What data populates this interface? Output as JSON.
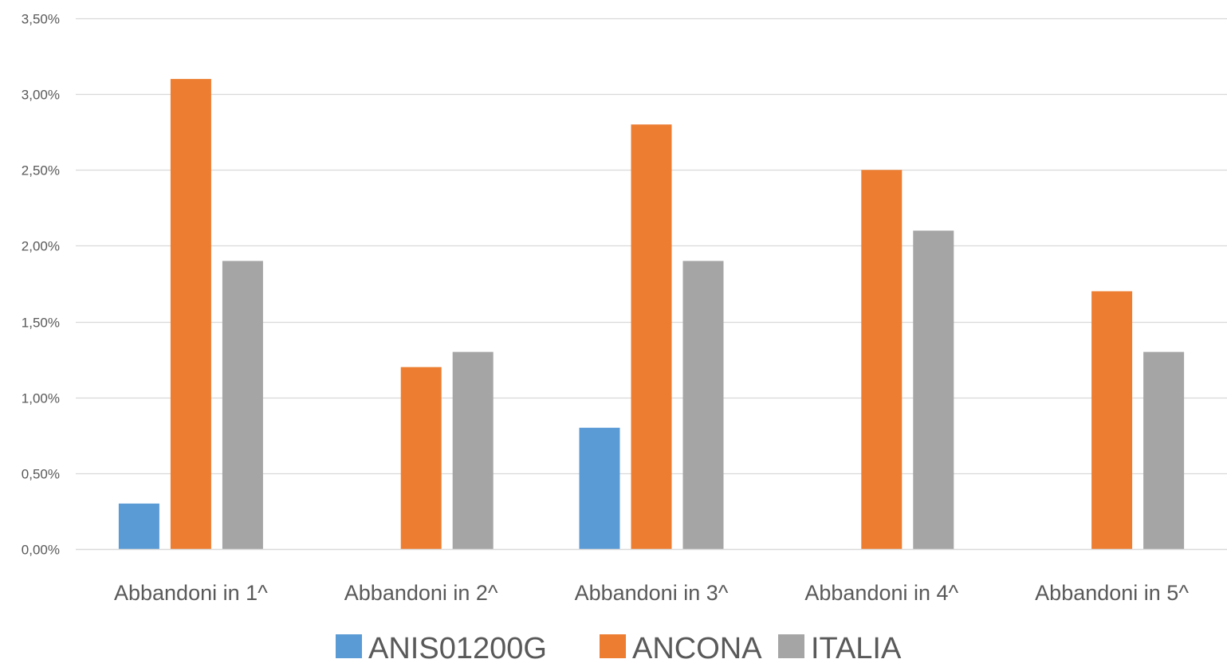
{
  "chart_data": {
    "type": "bar",
    "title": "",
    "xlabel": "",
    "ylabel": "",
    "categories": [
      "Abbandoni in 1^",
      "Abbandoni in 2^",
      "Abbandoni in 3^",
      "Abbandoni in 4^",
      "Abbandoni in 5^"
    ],
    "series": [
      {
        "name": "ANIS01200G",
        "color": "#5B9BD5",
        "values": [
          0.003,
          0,
          0.008,
          0,
          0
        ]
      },
      {
        "name": "ANCONA",
        "color": "#ED7D31",
        "values": [
          0.031,
          0.012,
          0.028,
          0.025,
          0.017
        ]
      },
      {
        "name": "ITALIA",
        "color": "#A5A5A5",
        "values": [
          0.019,
          0.013,
          0.019,
          0.021,
          0.013
        ]
      }
    ],
    "ylim": [
      0,
      0.035
    ],
    "yticks": [
      0,
      0.005,
      0.01,
      0.015,
      0.02,
      0.025,
      0.03,
      0.035
    ],
    "ytick_labels": [
      "0,00%",
      "0,50%",
      "1,00%",
      "1,50%",
      "2,00%",
      "2,50%",
      "3,00%",
      "3,50%"
    ],
    "grid": true,
    "legend_position": "bottom",
    "gridline_color": "#D9D9D9",
    "text_color": "#595959"
  }
}
